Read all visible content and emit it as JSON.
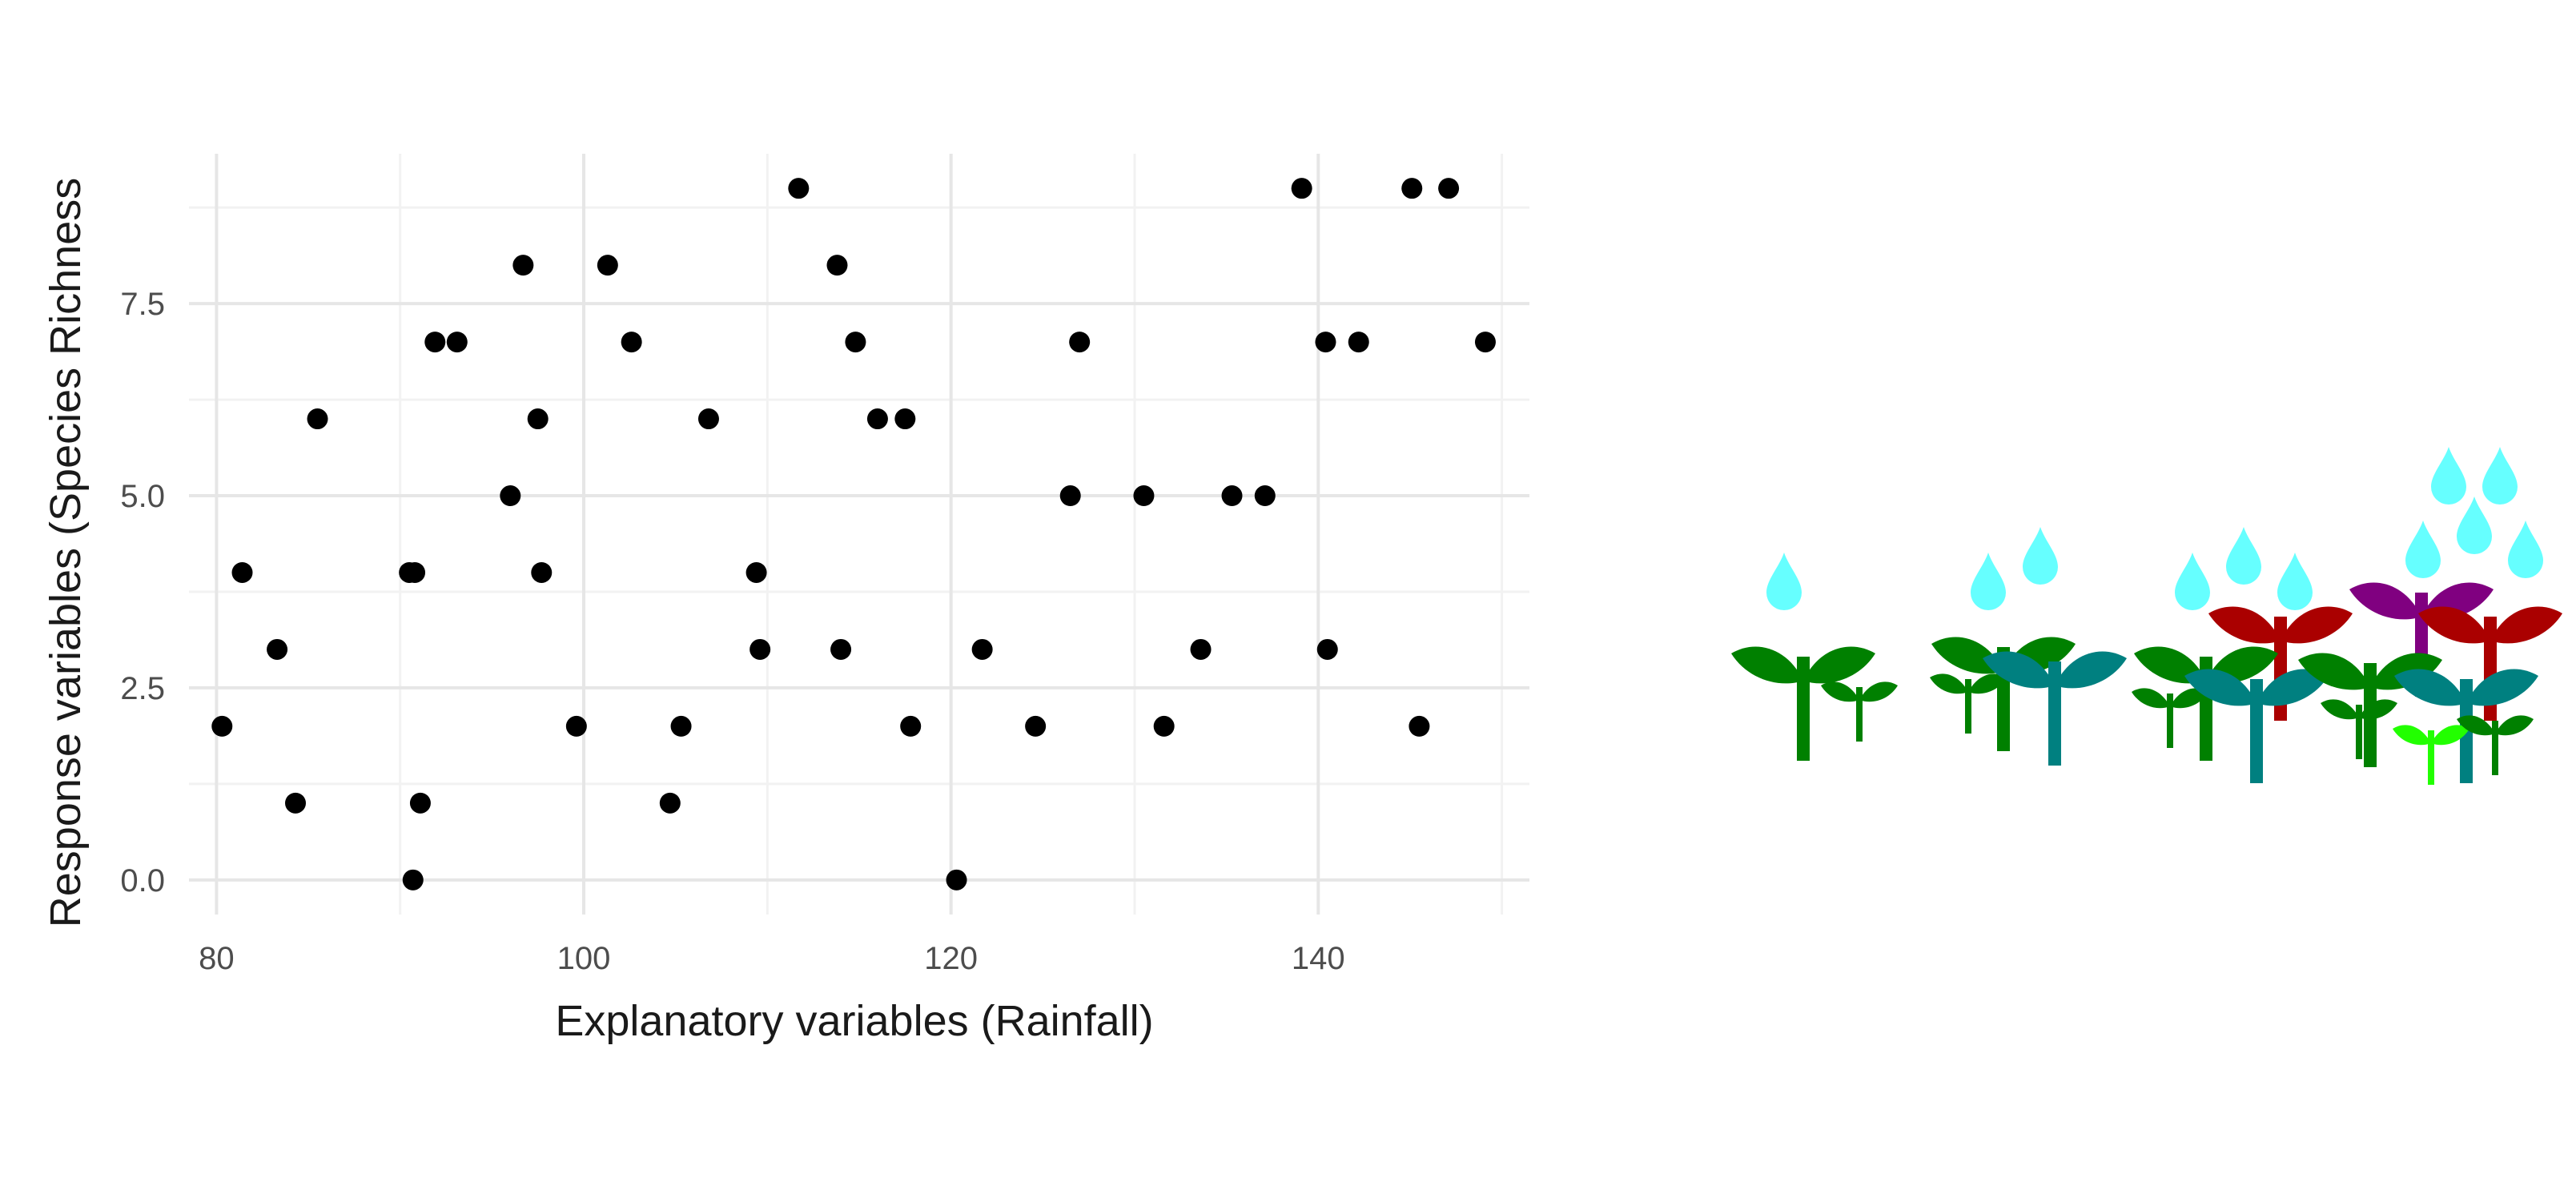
{
  "chart_data": {
    "type": "scatter",
    "title": "",
    "xlabel": "Explanatory variables (Rainfall)",
    "ylabel": "Response variables (Species Richness",
    "xlim": [
      78.5,
      151.5
    ],
    "ylim": [
      -0.45,
      9.45
    ],
    "x_ticks": [
      80,
      100,
      120,
      140
    ],
    "x_tick_labels": [
      "80",
      "100",
      "120",
      "140"
    ],
    "y_ticks": [
      0,
      2.5,
      5,
      7.5
    ],
    "y_tick_labels": [
      "0.0",
      "2.5",
      "5.0",
      "7.5"
    ],
    "grid": true,
    "legend": "none",
    "point_color": "#000000",
    "points": [
      {
        "x": 80.3,
        "y": 2
      },
      {
        "x": 81.4,
        "y": 4
      },
      {
        "x": 83.3,
        "y": 3
      },
      {
        "x": 84.3,
        "y": 1
      },
      {
        "x": 85.5,
        "y": 6
      },
      {
        "x": 90.5,
        "y": 4
      },
      {
        "x": 90.7,
        "y": 0
      },
      {
        "x": 90.8,
        "y": 4
      },
      {
        "x": 91.1,
        "y": 1
      },
      {
        "x": 91.9,
        "y": 7
      },
      {
        "x": 93.1,
        "y": 7
      },
      {
        "x": 96.0,
        "y": 5
      },
      {
        "x": 96.7,
        "y": 8
      },
      {
        "x": 97.5,
        "y": 6
      },
      {
        "x": 97.7,
        "y": 4
      },
      {
        "x": 99.6,
        "y": 2
      },
      {
        "x": 101.3,
        "y": 8
      },
      {
        "x": 102.6,
        "y": 7
      },
      {
        "x": 104.7,
        "y": 1
      },
      {
        "x": 105.3,
        "y": 2
      },
      {
        "x": 106.8,
        "y": 6
      },
      {
        "x": 109.4,
        "y": 4
      },
      {
        "x": 109.6,
        "y": 3
      },
      {
        "x": 111.7,
        "y": 9
      },
      {
        "x": 113.8,
        "y": 8
      },
      {
        "x": 114.0,
        "y": 3
      },
      {
        "x": 114.8,
        "y": 7
      },
      {
        "x": 116.0,
        "y": 6
      },
      {
        "x": 117.5,
        "y": 6
      },
      {
        "x": 117.8,
        "y": 2
      },
      {
        "x": 120.3,
        "y": 0
      },
      {
        "x": 121.7,
        "y": 3
      },
      {
        "x": 124.6,
        "y": 2
      },
      {
        "x": 126.5,
        "y": 5
      },
      {
        "x": 127.0,
        "y": 7
      },
      {
        "x": 130.5,
        "y": 5
      },
      {
        "x": 131.6,
        "y": 2
      },
      {
        "x": 133.6,
        "y": 3
      },
      {
        "x": 135.3,
        "y": 5
      },
      {
        "x": 137.1,
        "y": 5
      },
      {
        "x": 139.1,
        "y": 9
      },
      {
        "x": 140.4,
        "y": 7
      },
      {
        "x": 140.5,
        "y": 3
      },
      {
        "x": 142.2,
        "y": 7
      },
      {
        "x": 145.1,
        "y": 9
      },
      {
        "x": 145.5,
        "y": 2
      },
      {
        "x": 147.1,
        "y": 9
      },
      {
        "x": 149.1,
        "y": 7
      }
    ]
  },
  "illustration": {
    "colors": {
      "raindrop": "#66ffff",
      "green": "#008000",
      "teal": "#008080",
      "red": "#aa0000",
      "purple": "#800080",
      "light_green": "#22ff00"
    },
    "groups": [
      {
        "raindrops": 1,
        "plants": [
          "green",
          "green"
        ]
      },
      {
        "raindrops": 2,
        "plants": [
          "green",
          "green",
          "teal"
        ]
      },
      {
        "raindrops": 3,
        "plants": [
          "green",
          "green",
          "teal",
          "red"
        ]
      },
      {
        "raindrops": 5,
        "plants": [
          "green",
          "green",
          "teal",
          "red",
          "purple",
          "light_green"
        ]
      }
    ]
  }
}
